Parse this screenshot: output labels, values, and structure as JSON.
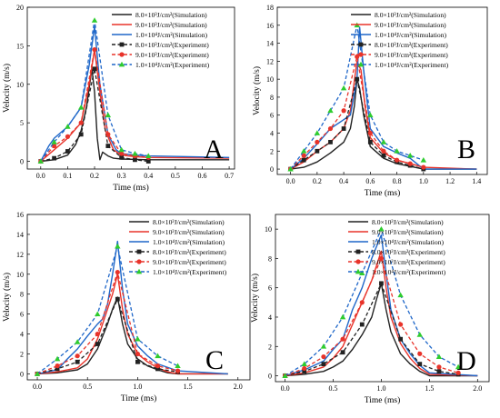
{
  "chart_data": [
    {
      "type": "line",
      "panel_letter": "A",
      "xlabel": "Time (ms)",
      "ylabel": "Velocity (m/s)",
      "xlim": [
        -0.05,
        0.72
      ],
      "ylim": [
        -1,
        20
      ],
      "xticks": [
        "0.0",
        "0.1",
        "0.2",
        "0.3",
        "0.4",
        "0.5",
        "0.6",
        "0.7"
      ],
      "yticks": [
        "0",
        "5",
        "10",
        "15",
        "20"
      ],
      "legend_position": "top-right",
      "series": [
        {
          "name": "8.0×10³J/cm²(Simulation)",
          "color": "#222222",
          "style": "solid",
          "marker": "none",
          "x": [
            0,
            0.05,
            0.1,
            0.13,
            0.15,
            0.17,
            0.19,
            0.2,
            0.21,
            0.22,
            0.23,
            0.25,
            0.27,
            0.3,
            0.4,
            0.7
          ],
          "y": [
            0,
            0.2,
            0.8,
            2.2,
            4.0,
            7.0,
            12.0,
            9.0,
            3.0,
            0.2,
            1.2,
            0.7,
            0.4,
            0.3,
            0.2,
            0.2
          ]
        },
        {
          "name": "9.0×10³J/cm²(Simulation)",
          "color": "#e8332a",
          "style": "solid",
          "marker": "none",
          "x": [
            0,
            0.05,
            0.1,
            0.15,
            0.18,
            0.2,
            0.22,
            0.24,
            0.27,
            0.3,
            0.35,
            0.4,
            0.7
          ],
          "y": [
            0,
            1.5,
            3.0,
            5.0,
            10.0,
            14.5,
            9.0,
            4.0,
            1.5,
            0.8,
            0.6,
            0.5,
            0.4
          ]
        },
        {
          "name": "1.0×10⁴J/cm²(Simulation)",
          "color": "#1f67c9",
          "style": "solid",
          "marker": "none",
          "x": [
            0,
            0.03,
            0.05,
            0.1,
            0.15,
            0.18,
            0.2,
            0.22,
            0.25,
            0.28,
            0.3,
            0.35,
            0.4,
            0.7
          ],
          "y": [
            0,
            2.0,
            3.0,
            4.5,
            7.0,
            12.5,
            17.5,
            10.0,
            3.5,
            1.5,
            1.0,
            0.8,
            0.7,
            0.5
          ]
        },
        {
          "name": "8.0×10³J/cm²(Experiment)",
          "color": "#222222",
          "style": "dashed",
          "marker": "square",
          "x": [
            0,
            0.05,
            0.1,
            0.15,
            0.2,
            0.25,
            0.3,
            0.35,
            0.4
          ],
          "y": [
            0,
            0.4,
            1.3,
            3.5,
            12.0,
            2.0,
            0.5,
            0.2,
            0.0
          ]
        },
        {
          "name": "9.0×10³J/cm²(Experiment)",
          "color": "#e8332a",
          "style": "dashed",
          "marker": "circle",
          "x": [
            0,
            0.05,
            0.1,
            0.15,
            0.2,
            0.25,
            0.3,
            0.35,
            0.4
          ],
          "y": [
            0,
            2.0,
            3.2,
            5.0,
            14.5,
            3.5,
            1.0,
            0.7,
            0.5
          ]
        },
        {
          "name": "1.0×10⁴J/cm²(Experiment)",
          "color": "#2ecc2e",
          "line_color": "#1f67c9",
          "style": "dashed",
          "marker": "triangle",
          "x": [
            0,
            0.05,
            0.1,
            0.15,
            0.2,
            0.25,
            0.3,
            0.35,
            0.4
          ],
          "y": [
            0,
            2.5,
            4.5,
            7.0,
            18.3,
            6.0,
            1.5,
            1.0,
            0.7
          ]
        }
      ]
    },
    {
      "type": "line",
      "panel_letter": "B",
      "xlabel": "Time (ms)",
      "ylabel": "Velocity (m/s)",
      "xlim": [
        -0.1,
        1.48
      ],
      "ylim": [
        -0.6,
        18
      ],
      "xticks": [
        "0.0",
        "0.2",
        "0.4",
        "0.6",
        "0.8",
        "1.0",
        "1.2",
        "1.4"
      ],
      "yticks": [
        "0",
        "2",
        "4",
        "6",
        "8",
        "10",
        "12",
        "14",
        "16",
        "18"
      ],
      "legend_position": "top-right",
      "series": [
        {
          "name": "8.0×10³J/cm²(Simulation)",
          "color": "#222222",
          "style": "solid",
          "marker": "none",
          "x": [
            0,
            0.1,
            0.2,
            0.3,
            0.4,
            0.45,
            0.48,
            0.5,
            0.52,
            0.55,
            0.6,
            0.7,
            0.8,
            0.9,
            1.0,
            1.4
          ],
          "y": [
            0,
            0.2,
            0.8,
            1.8,
            3.0,
            4.5,
            7.0,
            10.0,
            9.0,
            6.0,
            2.5,
            1.2,
            0.6,
            0.3,
            0,
            0
          ]
        },
        {
          "name": "9.0×10³J/cm²(Simulation)",
          "color": "#e8332a",
          "style": "solid",
          "marker": "none",
          "x": [
            0,
            0.1,
            0.2,
            0.3,
            0.4,
            0.45,
            0.5,
            0.53,
            0.56,
            0.6,
            0.7,
            0.8,
            0.9,
            1.0,
            1.4
          ],
          "y": [
            0,
            0.8,
            2.0,
            3.0,
            4.5,
            6.5,
            12.0,
            11.0,
            7.0,
            3.5,
            1.8,
            1.0,
            0.6,
            0.2,
            0
          ]
        },
        {
          "name": "1.0×10⁴J/cm²(Simulation)",
          "color": "#1f67c9",
          "style": "solid",
          "marker": "none",
          "x": [
            0,
            0.1,
            0.2,
            0.3,
            0.4,
            0.45,
            0.5,
            0.52,
            0.55,
            0.58,
            0.6,
            0.7,
            0.8,
            0.9,
            1.0,
            1.4
          ],
          "y": [
            0,
            1.2,
            2.8,
            4.5,
            5.5,
            6.0,
            10.0,
            15.8,
            11.0,
            7.0,
            4.5,
            2.5,
            1.8,
            1.2,
            0,
            0
          ]
        },
        {
          "name": "8.0×10³J/cm²(Experiment)",
          "color": "#222222",
          "style": "dashed",
          "marker": "square",
          "x": [
            0,
            0.1,
            0.2,
            0.3,
            0.4,
            0.5,
            0.6,
            0.7,
            0.8,
            0.9,
            1.0
          ],
          "y": [
            0,
            1.0,
            2.0,
            3.0,
            4.5,
            10.0,
            3.0,
            1.5,
            0.8,
            0.4,
            0.0
          ]
        },
        {
          "name": "9.0×10³J/cm²(Experiment)",
          "color": "#e8332a",
          "style": "dashed",
          "marker": "circle",
          "x": [
            0,
            0.1,
            0.2,
            0.3,
            0.4,
            0.5,
            0.6,
            0.7,
            0.8,
            0.9,
            1.0
          ],
          "y": [
            0,
            1.5,
            3.0,
            4.5,
            6.5,
            12.5,
            4.0,
            2.0,
            1.0,
            0.6,
            0.2
          ]
        },
        {
          "name": "1.0×10⁴J/cm²(Experiment)",
          "color": "#2ecc2e",
          "line_color": "#1f67c9",
          "style": "dashed",
          "marker": "triangle",
          "x": [
            0,
            0.1,
            0.2,
            0.3,
            0.4,
            0.5,
            0.6,
            0.7,
            0.8,
            0.9,
            1.0
          ],
          "y": [
            0,
            2.0,
            4.0,
            6.5,
            9.0,
            16.0,
            6.0,
            3.0,
            2.0,
            1.5,
            1.0
          ]
        }
      ]
    },
    {
      "type": "line",
      "panel_letter": "C",
      "xlabel": "Time (ms)",
      "ylabel": "Velocity (m/s)",
      "xlim": [
        -0.1,
        2.12
      ],
      "ylim": [
        -0.6,
        16
      ],
      "xticks": [
        "0.0",
        "0.5",
        "1.0",
        "1.5",
        "2.0"
      ],
      "yticks": [
        "0",
        "2",
        "4",
        "6",
        "8",
        "10",
        "12",
        "14",
        "16"
      ],
      "legend_position": "top-right",
      "series": [
        {
          "name": "8.0×10³J/cm²(Simulation)",
          "color": "#222222",
          "style": "solid",
          "marker": "none",
          "x": [
            0,
            0.2,
            0.4,
            0.5,
            0.6,
            0.7,
            0.75,
            0.8,
            0.85,
            0.9,
            1.0,
            1.1,
            1.2,
            1.3,
            1.4,
            1.9
          ],
          "y": [
            0,
            0.1,
            0.4,
            1.0,
            2.5,
            5.0,
            6.5,
            7.7,
            5.0,
            3.0,
            1.5,
            0.8,
            0.4,
            0.1,
            0,
            0
          ]
        },
        {
          "name": "9.0×10³J/cm²(Simulation)",
          "color": "#e8332a",
          "style": "solid",
          "marker": "none",
          "x": [
            0,
            0.2,
            0.4,
            0.5,
            0.6,
            0.7,
            0.75,
            0.8,
            0.85,
            0.9,
            1.0,
            1.1,
            1.2,
            1.3,
            1.4,
            1.9
          ],
          "y": [
            0,
            0.2,
            0.6,
            1.5,
            3.5,
            6.5,
            8.0,
            10.0,
            6.5,
            4.0,
            2.0,
            1.2,
            0.6,
            0.2,
            0,
            0
          ]
        },
        {
          "name": "1.0×10⁴J/cm²(Simulation)",
          "color": "#1f67c9",
          "style": "solid",
          "marker": "none",
          "x": [
            0,
            0.2,
            0.3,
            0.4,
            0.5,
            0.6,
            0.65,
            0.7,
            0.75,
            0.8,
            0.85,
            0.9,
            1.0,
            1.1,
            1.2,
            1.4,
            1.9
          ],
          "y": [
            0,
            0.4,
            1.5,
            2.5,
            3.8,
            5.0,
            5.5,
            7.0,
            10.0,
            13.3,
            8.5,
            5.0,
            2.8,
            1.8,
            1.0,
            0.3,
            0
          ]
        },
        {
          "name": "8.0×10³J/cm²(Experiment)",
          "color": "#222222",
          "style": "dashed",
          "marker": "square",
          "x": [
            0,
            0.2,
            0.4,
            0.6,
            0.8,
            1.0,
            1.2,
            1.4
          ],
          "y": [
            0,
            0.5,
            1.2,
            3.0,
            7.5,
            1.2,
            0.5,
            0.2
          ]
        },
        {
          "name": "9.0×10³J/cm²(Experiment)",
          "color": "#e8332a",
          "style": "dashed",
          "marker": "circle",
          "x": [
            0,
            0.2,
            0.4,
            0.6,
            0.8,
            1.0,
            1.2,
            1.4
          ],
          "y": [
            0,
            0.8,
            1.8,
            4.0,
            10.2,
            2.0,
            0.8,
            0.3
          ]
        },
        {
          "name": "1.0×10⁴J/cm²(Experiment)",
          "color": "#2ecc2e",
          "line_color": "#1f67c9",
          "style": "dashed",
          "marker": "triangle",
          "x": [
            0,
            0.2,
            0.4,
            0.6,
            0.8,
            1.0,
            1.2,
            1.4
          ],
          "y": [
            0,
            1.5,
            3.2,
            6.0,
            12.8,
            3.5,
            1.8,
            0.8
          ]
        }
      ]
    },
    {
      "type": "line",
      "panel_letter": "D",
      "xlabel": "Time (ms)",
      "ylabel": "Velocity (m/s)",
      "xlim": [
        -0.1,
        2.12
      ],
      "ylim": [
        -0.4,
        11
      ],
      "xticks": [
        "0.0",
        "0.5",
        "1.0",
        "1.5",
        "2.0"
      ],
      "yticks": [
        "0",
        "2",
        "4",
        "6",
        "8",
        "10"
      ],
      "legend_position": "top-right",
      "series": [
        {
          "name": "8.0×10³J/cm²(Simulation)",
          "color": "#222222",
          "style": "solid",
          "marker": "none",
          "x": [
            0,
            0.2,
            0.4,
            0.5,
            0.6,
            0.7,
            0.8,
            0.9,
            0.95,
            1.0,
            1.05,
            1.1,
            1.2,
            1.3,
            1.4,
            1.5,
            2.0
          ],
          "y": [
            0,
            0.1,
            0.3,
            0.6,
            1.0,
            1.8,
            2.8,
            4.0,
            5.2,
            6.3,
            4.5,
            3.0,
            1.5,
            0.8,
            0.3,
            0,
            0
          ]
        },
        {
          "name": "9.0×10³J/cm²(Simulation)",
          "color": "#e8332a",
          "style": "solid",
          "marker": "none",
          "x": [
            0,
            0.2,
            0.4,
            0.5,
            0.6,
            0.7,
            0.8,
            0.9,
            0.95,
            1.0,
            1.05,
            1.1,
            1.2,
            1.3,
            1.4,
            1.5,
            2.0
          ],
          "y": [
            0,
            0.2,
            0.6,
            1.2,
            2.0,
            3.5,
            5.0,
            6.5,
            7.5,
            8.5,
            6.0,
            4.0,
            2.2,
            1.2,
            0.5,
            0.1,
            0
          ]
        },
        {
          "name": "1.0×10⁴J/cm²(Simulation)",
          "color": "#1f67c9",
          "style": "solid",
          "marker": "none",
          "x": [
            0,
            0.2,
            0.4,
            0.5,
            0.6,
            0.7,
            0.8,
            0.9,
            0.95,
            1.0,
            1.05,
            1.1,
            1.2,
            1.3,
            1.4,
            1.5,
            2.0
          ],
          "y": [
            0,
            0.4,
            1.0,
            1.8,
            2.5,
            4.5,
            6.0,
            8.0,
            8.8,
            9.6,
            7.0,
            4.5,
            2.5,
            1.5,
            0.7,
            0.2,
            0
          ]
        },
        {
          "name": "8.0×10³J/cm²(Experiment)",
          "color": "#222222",
          "style": "dashed",
          "marker": "square",
          "x": [
            0,
            0.2,
            0.4,
            0.6,
            0.8,
            1.0,
            1.2,
            1.4,
            1.6,
            1.8
          ],
          "y": [
            0,
            0.3,
            0.8,
            1.6,
            3.5,
            6.3,
            2.5,
            0.8,
            0.3,
            0.1
          ]
        },
        {
          "name": "9.0×10³J/cm²(Experiment)",
          "color": "#e8332a",
          "style": "dashed",
          "marker": "circle",
          "x": [
            0,
            0.2,
            0.4,
            0.6,
            0.8,
            1.0,
            1.2,
            1.4,
            1.6,
            1.8
          ],
          "y": [
            0,
            0.5,
            1.3,
            2.5,
            5.0,
            8.0,
            3.5,
            1.5,
            0.6,
            0.2
          ]
        },
        {
          "name": "1.0×10⁴J/cm²(Experiment)",
          "color": "#2ecc2e",
          "line_color": "#1f67c9",
          "style": "dashed",
          "marker": "triangle",
          "x": [
            0,
            0.2,
            0.4,
            0.6,
            0.8,
            1.0,
            1.2,
            1.4,
            1.6,
            1.8
          ],
          "y": [
            0,
            0.8,
            2.0,
            4.0,
            7.0,
            10.0,
            5.5,
            2.8,
            1.3,
            0.6
          ]
        }
      ]
    }
  ]
}
